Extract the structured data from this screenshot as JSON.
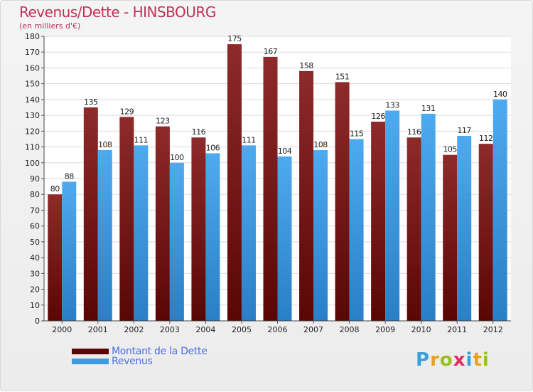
{
  "chart_data": {
    "type": "bar",
    "title": "Revenus/Dette - HINSBOURG",
    "subtitle": "(en milliers d'€)",
    "categories": [
      "2000",
      "2001",
      "2002",
      "2003",
      "2004",
      "2005",
      "2006",
      "2007",
      "2008",
      "2009",
      "2010",
      "2011",
      "2012"
    ],
    "series": [
      {
        "name": "Montant de la Dette",
        "color": "#8a1c1c",
        "values": [
          80,
          135,
          129,
          123,
          116,
          175,
          167,
          158,
          151,
          126,
          116,
          105,
          112
        ]
      },
      {
        "name": "Revenus",
        "color": "#3b9be0",
        "values": [
          88,
          108,
          111,
          100,
          106,
          111,
          104,
          108,
          115,
          133,
          131,
          117,
          140
        ]
      }
    ],
    "ylim": [
      0,
      180
    ],
    "ytick_step": 10,
    "xlabel": "",
    "ylabel": "",
    "grid": true,
    "legend_position": "bottom-left"
  },
  "brand": {
    "letters": [
      "P",
      "r",
      "o",
      "x",
      "i",
      "t",
      "i"
    ],
    "colors": [
      "#3aa0d8",
      "#e8a020",
      "#9ac020",
      "#e03060",
      "#3aa0d8",
      "#e8a020",
      "#9ac020"
    ]
  }
}
